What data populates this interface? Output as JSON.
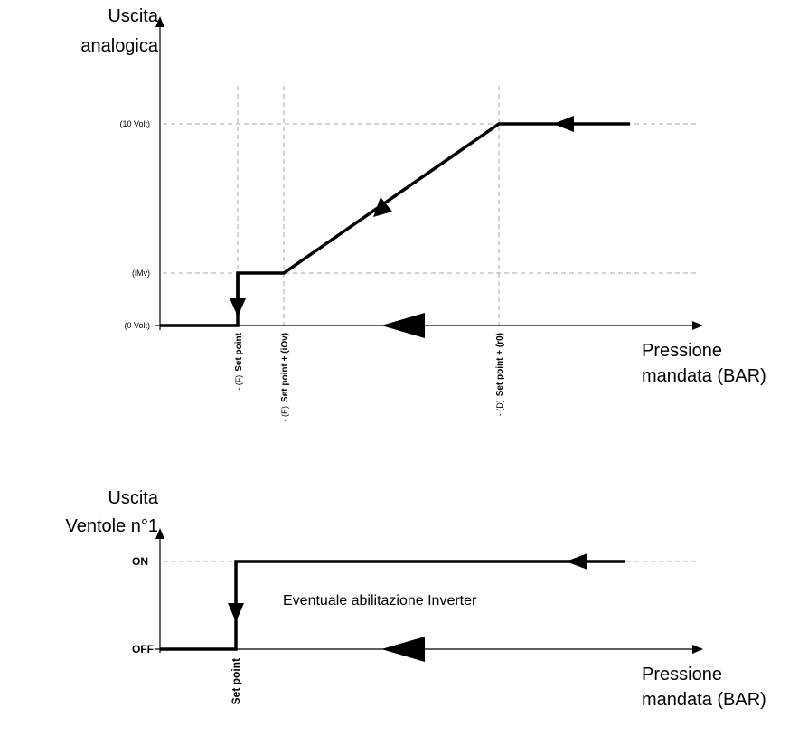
{
  "top_chart": {
    "y_axis_label": [
      "Uscita",
      "analogica"
    ],
    "levels": [
      "(10 Volt)",
      "(iMv)",
      "(0 Volt)"
    ],
    "x_markers": [
      {
        "label": "Set point",
        "tag": "- (F)"
      },
      {
        "label": "Set point + (iOv)",
        "tag": "- (E)"
      },
      {
        "label": "Set point + (r0)",
        "tag": "- (D)"
      }
    ],
    "x_axis_label": [
      "Pressione",
      "mandata (BAR)"
    ]
  },
  "bottom_chart": {
    "y_axis_label": [
      "Uscita",
      "Ventole n°1"
    ],
    "levels": [
      "ON",
      "OFF"
    ],
    "annotation": "Eventuale abilitazione Inverter",
    "x_marker": "Set point",
    "x_axis_label": [
      "Pressione",
      "mandata (BAR)"
    ]
  }
}
